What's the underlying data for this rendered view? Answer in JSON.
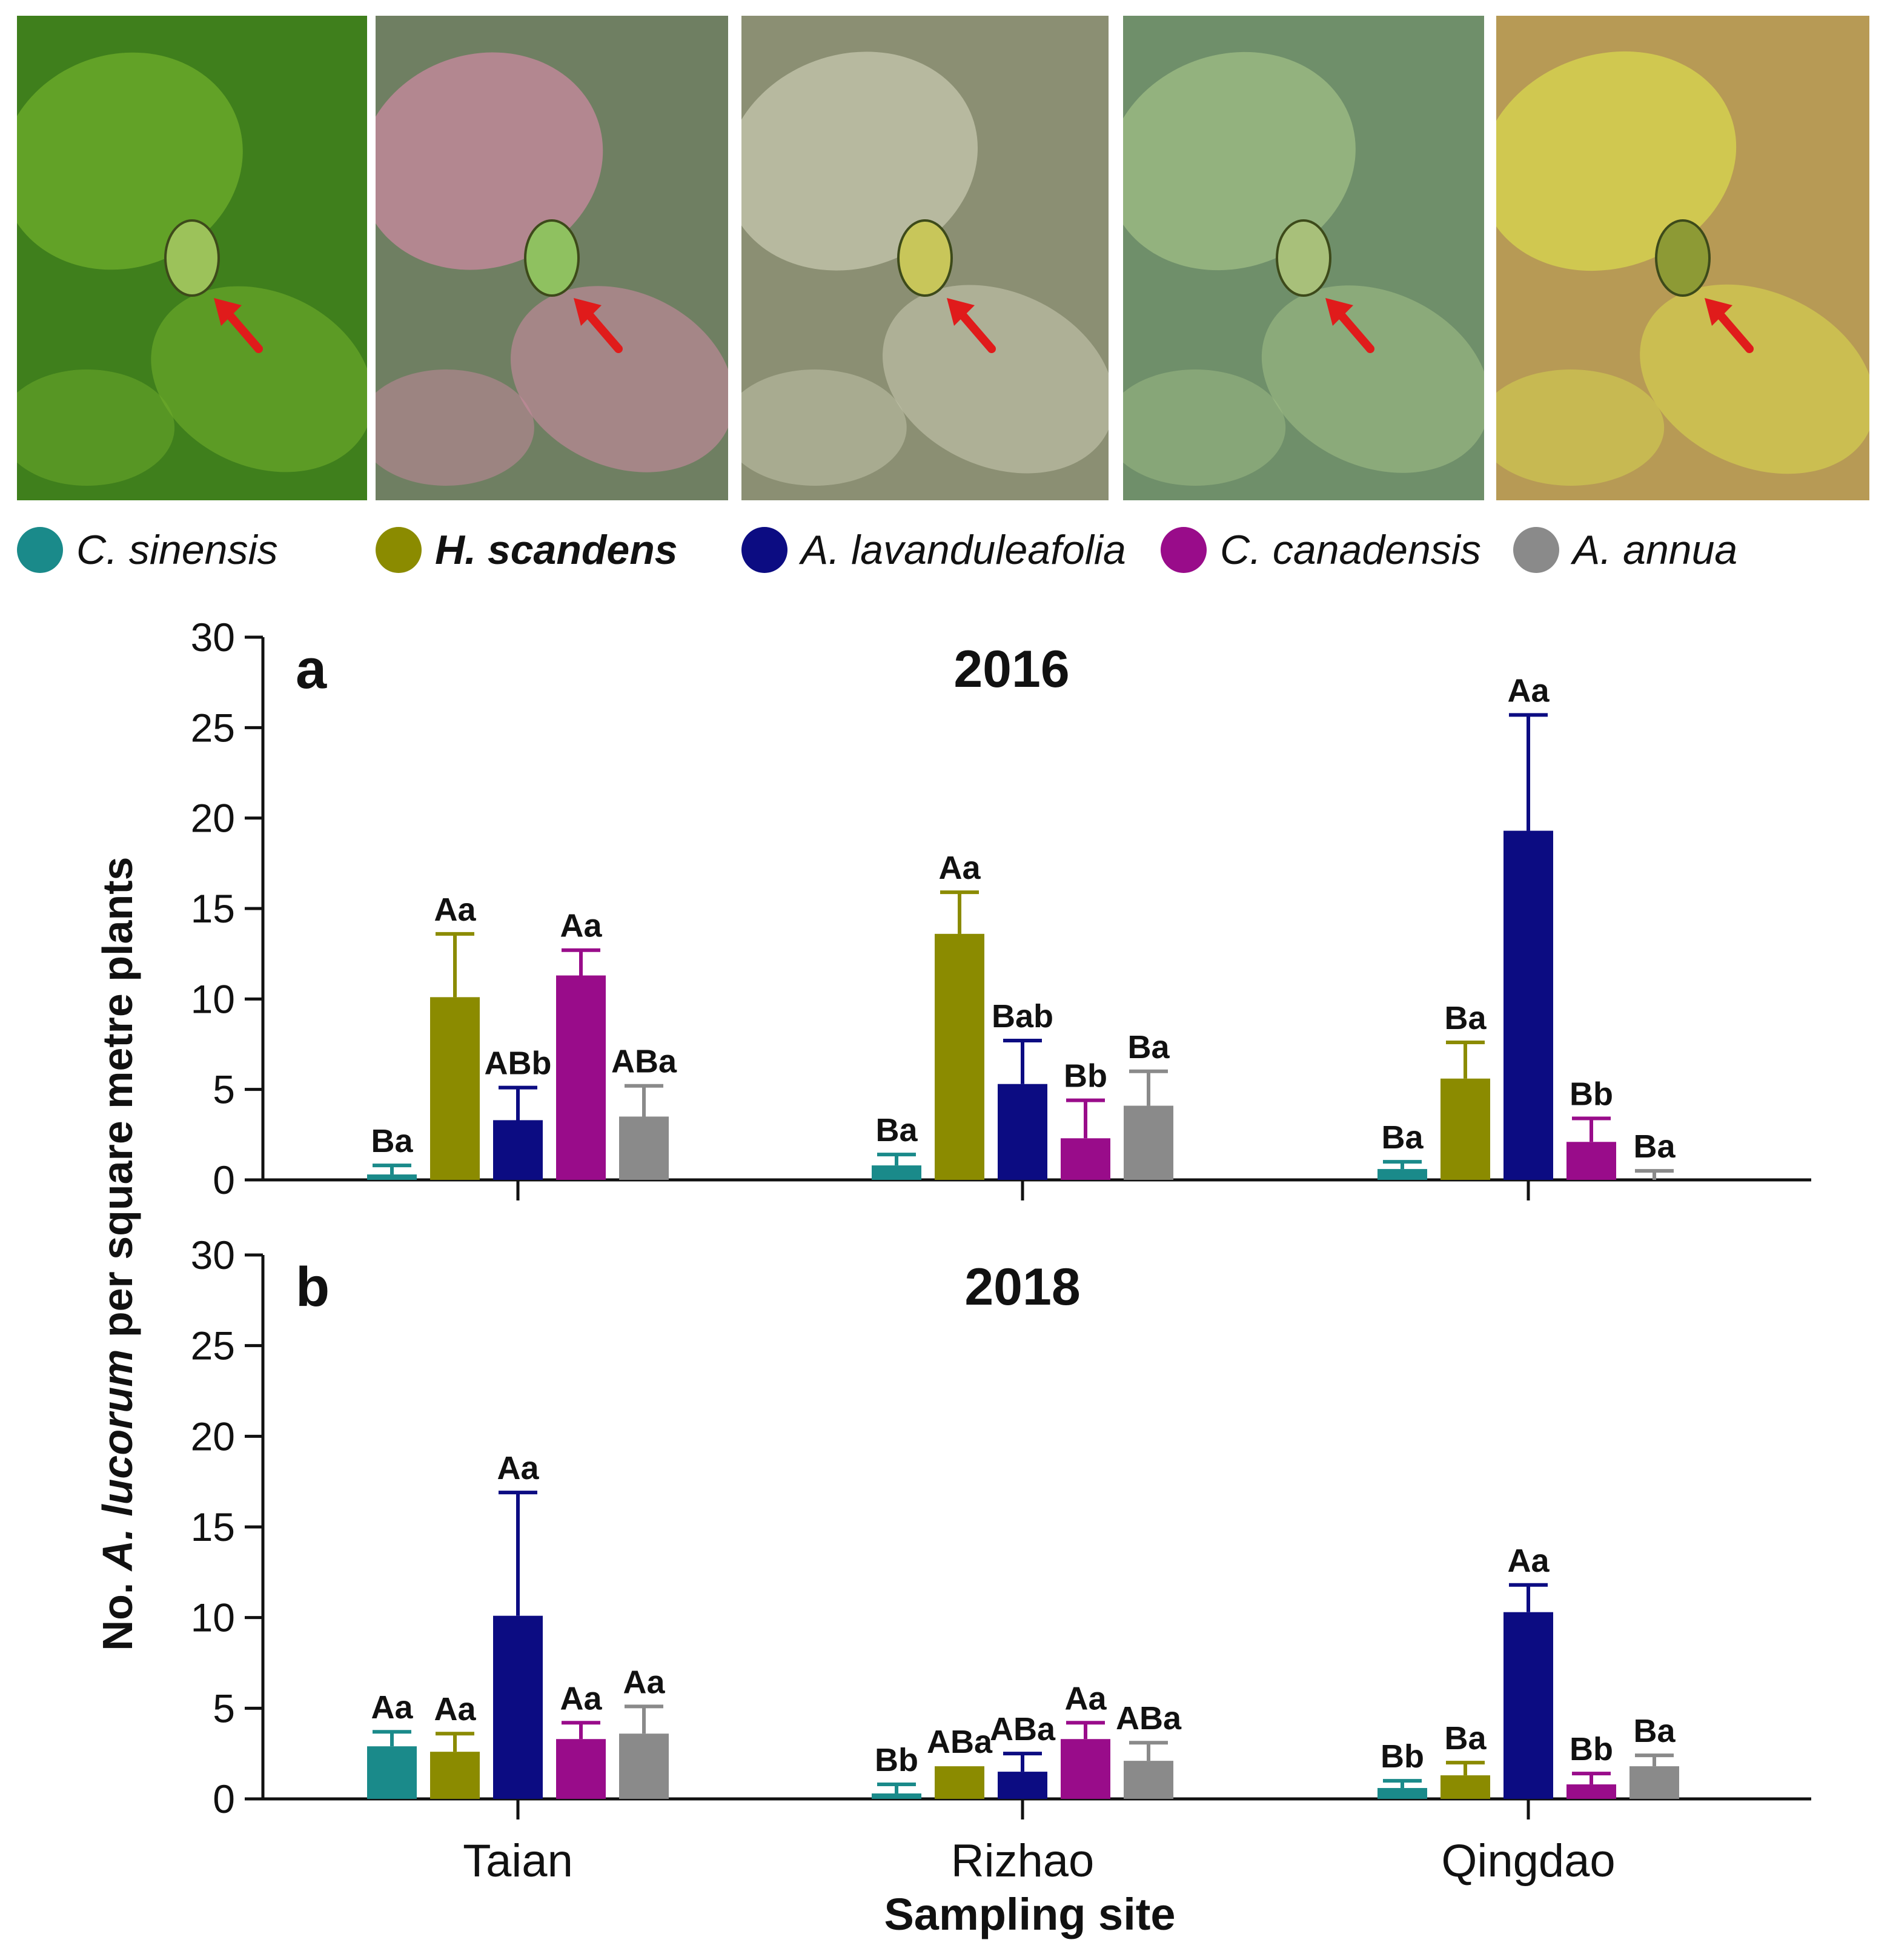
{
  "photos": [
    {
      "name": "photo-c-sinensis",
      "bg": "#3f7f1c",
      "leaf": "#6fae2b",
      "bug": "#9cc25a"
    },
    {
      "name": "photo-h-scandens",
      "bg": "#6f7f62",
      "leaf": "#c98aa0",
      "bug": "#8fc160"
    },
    {
      "name": "photo-a-lavanduleafolia",
      "bg": "#8b8f73",
      "leaf": "#c6c7ae",
      "bug": "#c8c65a"
    },
    {
      "name": "photo-c-canadensis",
      "bg": "#6f8f6a",
      "leaf": "#9fbd86",
      "bug": "#a8c07a"
    },
    {
      "name": "photo-a-annua",
      "bg": "#b79a55",
      "leaf": "#d8d74f",
      "bug": "#8d9a35"
    }
  ],
  "chart_data": [
    {
      "type": "bar",
      "panel_letter": "a",
      "title": "2016",
      "categories": [
        "Taian",
        "Rizhao",
        "Qingdao"
      ],
      "ylim": [
        0,
        30
      ],
      "yticks": [
        0,
        5,
        10,
        15,
        20,
        25,
        30
      ],
      "series": [
        {
          "name": "C. sinensis",
          "color": "#1a8a8a",
          "values": [
            0.3,
            0.8,
            0.6
          ],
          "errors": [
            0.5,
            0.6,
            0.4
          ],
          "labels": [
            "Ba",
            "Ba",
            "Ba"
          ]
        },
        {
          "name": "H. scandens",
          "color": "#8b8b00",
          "values": [
            10.1,
            13.6,
            5.6
          ],
          "errors": [
            3.5,
            2.3,
            2.0
          ],
          "labels": [
            "Aa",
            "Aa",
            "Ba"
          ]
        },
        {
          "name": "A. lavanduleafolia",
          "color": "#0c0c82",
          "values": [
            3.3,
            5.3,
            19.3
          ],
          "errors": [
            1.8,
            2.4,
            6.4
          ],
          "labels": [
            "ABb",
            "Bab",
            "Aa"
          ]
        },
        {
          "name": "C. canadensis",
          "color": "#990c8a",
          "values": [
            11.3,
            2.3,
            2.1
          ],
          "errors": [
            1.4,
            2.1,
            1.3
          ],
          "labels": [
            "Aa",
            "Bb",
            "Bb"
          ]
        },
        {
          "name": "A. annua",
          "color": "#8a8a8a",
          "values": [
            3.5,
            4.1,
            0.0
          ],
          "errors": [
            1.7,
            1.9,
            0.5
          ],
          "labels": [
            "ABa",
            "Ba",
            "Ba"
          ]
        }
      ]
    },
    {
      "type": "bar",
      "panel_letter": "b",
      "title": "2018",
      "categories": [
        "Taian",
        "Rizhao",
        "Qingdao"
      ],
      "ylim": [
        0,
        30
      ],
      "yticks": [
        0,
        5,
        10,
        15,
        20,
        25,
        30
      ],
      "series": [
        {
          "name": "C. sinensis",
          "color": "#1a8a8a",
          "values": [
            2.9,
            0.3,
            0.6
          ],
          "errors": [
            0.8,
            0.5,
            0.4
          ],
          "labels": [
            "Aa",
            "Bb",
            "Bb"
          ]
        },
        {
          "name": "H. scandens",
          "color": "#8b8b00",
          "values": [
            2.6,
            1.8,
            1.3
          ],
          "errors": [
            1.0,
            0.0,
            0.7
          ],
          "labels": [
            "Aa",
            "ABa",
            "Ba"
          ]
        },
        {
          "name": "A. lavanduleafolia",
          "color": "#0c0c82",
          "values": [
            10.1,
            1.5,
            10.3
          ],
          "errors": [
            6.8,
            1.0,
            1.5
          ],
          "labels": [
            "Aa",
            "ABa",
            "Aa"
          ]
        },
        {
          "name": "C. canadensis",
          "color": "#990c8a",
          "values": [
            3.3,
            3.3,
            0.8
          ],
          "errors": [
            0.9,
            0.9,
            0.6
          ],
          "labels": [
            "Aa",
            "Aa",
            "Bb"
          ]
        },
        {
          "name": "A. annua",
          "color": "#8a8a8a",
          "values": [
            3.6,
            2.1,
            1.8
          ],
          "errors": [
            1.5,
            1.0,
            0.6
          ],
          "labels": [
            "Aa",
            "ABa",
            "Ba"
          ]
        }
      ]
    }
  ],
  "legend": [
    {
      "label": "C. sinensis",
      "color": "#1a8a8a",
      "bold": false
    },
    {
      "label": "H. scandens",
      "color": "#8b8b00",
      "bold": true
    },
    {
      "label": "A. lavanduleafolia",
      "color": "#0c0c82",
      "bold": false
    },
    {
      "label": "C. canadensis",
      "color": "#990c8a",
      "bold": false
    },
    {
      "label": "A. annua",
      "color": "#8a8a8a",
      "bold": false
    }
  ],
  "axes": {
    "y_title_prefix": "No. ",
    "y_title_species": "A. lucorum",
    "y_title_suffix": " per square metre plants",
    "x_title": "Sampling site"
  }
}
